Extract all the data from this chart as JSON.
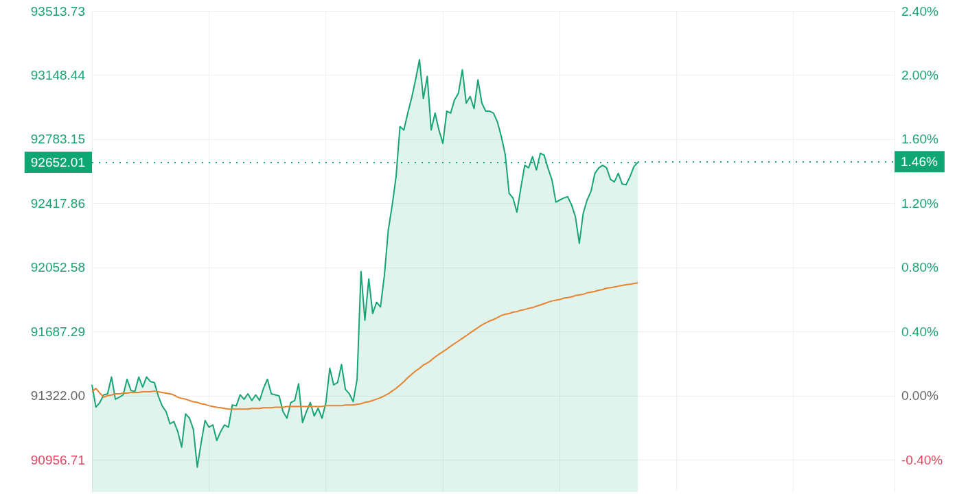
{
  "chart_data": {
    "type": "area",
    "categories": [
      null,
      null,
      null,
      null,
      null,
      null,
      null,
      null,
      null,
      null,
      null,
      null,
      null,
      null,
      null,
      null,
      null,
      null,
      null,
      null,
      null,
      null,
      null,
      null,
      null,
      null,
      null,
      null,
      null,
      null,
      null,
      null,
      null,
      null,
      null,
      null,
      null,
      null,
      null,
      null,
      null,
      null,
      null,
      null,
      null,
      null,
      null,
      null,
      null,
      null,
      null,
      null,
      null,
      null,
      null,
      null,
      null,
      null,
      null,
      null,
      null,
      null,
      null,
      null,
      null,
      null,
      null,
      null,
      null,
      null,
      null,
      null,
      null,
      null,
      null,
      null,
      null,
      null,
      null,
      null,
      null,
      null,
      null,
      null,
      null,
      null,
      null,
      null,
      null,
      null,
      null,
      null,
      null,
      null,
      null,
      null,
      null,
      null,
      null,
      null,
      null,
      null,
      null,
      null,
      null,
      null,
      null,
      null,
      null,
      null,
      null,
      null,
      null,
      null,
      null,
      null,
      null,
      null,
      null,
      null,
      null,
      null,
      null,
      null,
      null,
      null,
      null,
      null,
      null,
      null,
      null,
      null,
      null,
      null,
      null,
      null,
      null,
      null,
      null,
      null,
      null
    ],
    "series": [
      {
        "color": "#16a571",
        "values": [
          91384,
          91257,
          91283,
          91327,
          91333,
          91429,
          91302,
          91314,
          91327,
          91416,
          91352,
          91346,
          91429,
          91371,
          91429,
          91403,
          91397,
          91321,
          91264,
          91232,
          91162,
          91175,
          91118,
          91029,
          91219,
          91194,
          91131,
          90915,
          91054,
          91181,
          91143,
          91156,
          91067,
          91118,
          91156,
          91143,
          91270,
          91264,
          91327,
          91302,
          91333,
          91295,
          91327,
          91295,
          91365,
          91416,
          91333,
          91327,
          91321,
          91232,
          91194,
          91283,
          91295,
          91390,
          91169,
          91232,
          91283,
          91207,
          91251,
          91194,
          91283,
          91479,
          91384,
          91397,
          91500,
          91359,
          91333,
          91289,
          91416,
          92030,
          91752,
          91988,
          91790,
          91855,
          91828,
          92007,
          92266,
          92406,
          92570,
          92855,
          92836,
          92932,
          93019,
          93122,
          93236,
          93015,
          93141,
          92836,
          92932,
          92836,
          92760,
          92943,
          92932,
          93008,
          93046,
          93179,
          92989,
          93027,
          92958,
          93122,
          92989,
          92943,
          92943,
          92932,
          92882,
          92798,
          92696,
          92475,
          92448,
          92368,
          92505,
          92635,
          92620,
          92684,
          92608,
          92703,
          92692,
          92616,
          92551,
          92425,
          92437,
          92448,
          92456,
          92410,
          92342,
          92190,
          92361,
          92437,
          92486,
          92589,
          92620,
          92635,
          92620,
          92555,
          92540,
          92589,
          92528,
          92524,
          92570,
          92627,
          92652.01
        ]
      },
      {
        "type": "line",
        "color": "#e8822e",
        "values": [
          91345,
          91364,
          91337,
          91314,
          91322,
          91326,
          91333,
          91333,
          91337,
          91337,
          91341,
          91341,
          91341,
          91345,
          91345,
          91345,
          91349,
          91345,
          91341,
          91337,
          91333,
          91326,
          91314,
          91307,
          91303,
          91295,
          91288,
          91284,
          91276,
          91273,
          91265,
          91261,
          91257,
          91254,
          91250,
          91246,
          91246,
          91246,
          91246,
          91246,
          91246,
          91250,
          91250,
          91250,
          91254,
          91254,
          91254,
          91257,
          91257,
          91257,
          91261,
          91261,
          91261,
          91261,
          91261,
          91261,
          91261,
          91261,
          91261,
          91261,
          91265,
          91265,
          91265,
          91265,
          91265,
          91269,
          91269,
          91269,
          91273,
          91276,
          91284,
          91288,
          91295,
          91303,
          91311,
          91322,
          91333,
          91349,
          91364,
          91383,
          91402,
          91425,
          91444,
          91463,
          91478,
          91497,
          91508,
          91524,
          91543,
          91558,
          91573,
          91588,
          91604,
          91619,
          91634,
          91649,
          91664,
          91680,
          91695,
          91710,
          91725,
          91737,
          91748,
          91756,
          91767,
          91779,
          91786,
          91790,
          91798,
          91801,
          91809,
          91813,
          91820,
          91824,
          91832,
          91839,
          91847,
          91855,
          91862,
          91866,
          91870,
          91878,
          91881,
          91885,
          91893,
          91897,
          91900,
          91908,
          91912,
          91916,
          91923,
          91927,
          91935,
          91938,
          91942,
          91946,
          91950,
          91954,
          91957,
          91961,
          91965
        ]
      }
    ],
    "ylim": [
      90774,
      93513.73
    ],
    "yticks": [
      90956.71,
      {
        "value": 91322,
        "label": "91322.00"
      },
      91687.29,
      92052.58,
      92417.86,
      92783.15,
      93148.44,
      93513.73
    ],
    "y2lim": [
      -0.6,
      2.4
    ],
    "y2ticks": [
      {
        "value": -0.4,
        "label": "-0.40%"
      },
      {
        "value": 0,
        "label": "0.00%"
      },
      {
        "value": 0.4,
        "label": "0.40%"
      },
      {
        "value": 0.8,
        "label": "0.80%"
      },
      {
        "value": 1.2,
        "label": "1.20%"
      },
      {
        "value": 1.6,
        "label": "1.60%"
      },
      {
        "value": 2,
        "label": "2.00%"
      },
      {
        "value": 2.4,
        "label": "2.40%"
      }
    ],
    "ref_lines": [
      {
        "axis": "y",
        "value": 92652.01,
        "label": "92652.01",
        "color": "#10a674",
        "line_style": "dotted"
      },
      {
        "axis": "y2",
        "value": 1.46,
        "label": "1.46%",
        "color": "#10a674",
        "line_style": "dotted"
      }
    ],
    "grid": true,
    "tick_labels": "y"
  }
}
